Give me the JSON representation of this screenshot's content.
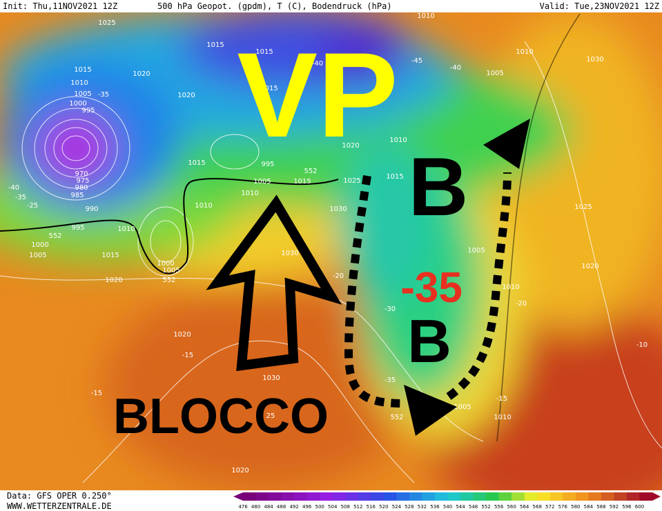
{
  "header": {
    "init": "Init: Thu,11NOV2021 12Z",
    "title": "500 hPa Geopot. (gpdm), T (C), Bodendruck (hPa)",
    "valid": "Valid: Tue,23NOV2021 12Z"
  },
  "annotations": {
    "vp": "VP",
    "b_upper": "B",
    "temp": "-35",
    "b_lower": "B",
    "blocco": "BLOCCO"
  },
  "contour_labels": [
    "1025",
    "1015",
    "1010",
    "1005",
    "1000",
    "995",
    "1020",
    "1020",
    "-35",
    "970",
    "975",
    "980",
    "985",
    "990",
    "995",
    "1010",
    "1000",
    "1005",
    "1015",
    "1020",
    "552",
    "552",
    "1000",
    "1005",
    "1015",
    "1005",
    "1010",
    "1010",
    "995",
    "1015",
    "552",
    "1020",
    "1010",
    "1015",
    "1025",
    "1030",
    "1030",
    "1020",
    "1030",
    "25",
    "1020",
    "1005",
    "1010",
    "1020",
    "1025",
    "1030",
    "1010",
    "1005",
    "1010",
    "1015",
    "1015",
    "1015",
    "1005",
    "1010",
    "552",
    "-15",
    "-15",
    "-15",
    "-10",
    "-20",
    "-20",
    "-30",
    "-35",
    "-45",
    "-40",
    "-40",
    "-25",
    "-35",
    "-40"
  ],
  "footer": {
    "data": "Data: GFS OPER 0.250°",
    "site": "WWW.WETTERZENTRALE.DE"
  },
  "colorbar": {
    "labels": [
      476,
      480,
      484,
      488,
      492,
      496,
      500,
      504,
      508,
      512,
      516,
      520,
      524,
      528,
      532,
      536,
      540,
      544,
      548,
      552,
      556,
      560,
      564,
      568,
      572,
      576,
      580,
      584,
      588,
      592,
      596,
      600
    ]
  }
}
